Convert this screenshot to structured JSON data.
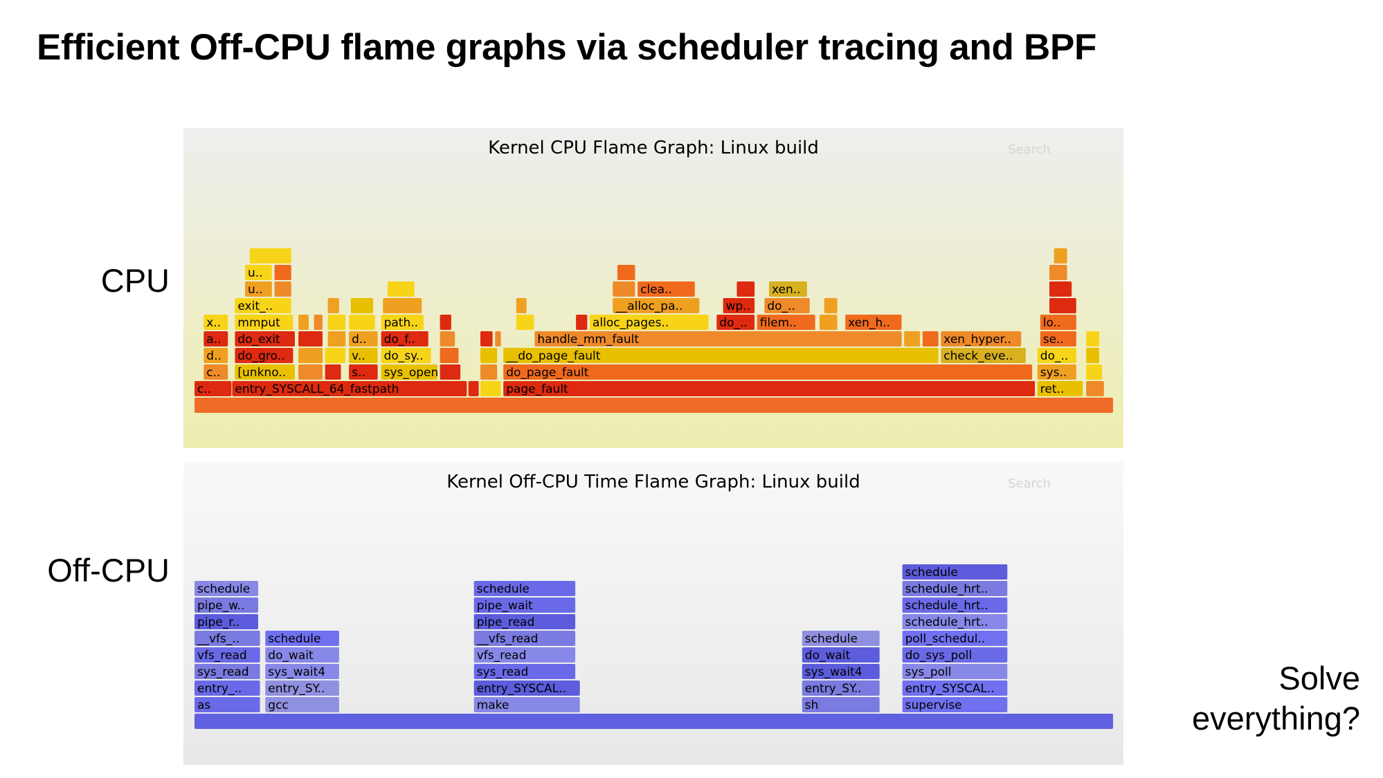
{
  "slide": {
    "title": "Efficient Off-CPU flame graphs via scheduler tracing and BPF",
    "cpu_label": "CPU",
    "offcpu_label": "Off-CPU",
    "solve_line1": "Solve",
    "solve_line2": "everything?"
  },
  "colors": {
    "cpu_palette": [
      "#e84a1a",
      "#f06a1e",
      "#e8c000",
      "#f0a020",
      "#dd2a10",
      "#f8d418",
      "#ee8a2a",
      "#d8b020"
    ],
    "cpu_base": "#f06a28",
    "offcpu_palette": [
      "#6a6ae8",
      "#7a7ae0",
      "#8888e8",
      "#5c5cdc",
      "#9090e0",
      "#7070f0"
    ],
    "offcpu_base": "#6060e0",
    "cpu_bg_top": "#eeeeee",
    "cpu_bg_bottom": "#eeeeb0",
    "offcpu_bg_top": "#f8f8f8",
    "offcpu_bg_bottom": "#e8e8e8"
  },
  "cpu_graph": {
    "title": "Kernel CPU Flame Graph: Linux build",
    "search_label": "Search",
    "frames": [
      {
        "label": "",
        "x0": 0.0,
        "x1": 1.0,
        "depth": 0,
        "c": "base"
      },
      {
        "label": "c..",
        "x0": 0.0,
        "x1": 0.041,
        "depth": 1,
        "c": 4
      },
      {
        "label": "entry_SYSCALL_64_fastpath",
        "x0": 0.041,
        "x1": 0.297,
        "depth": 1,
        "c": 4
      },
      {
        "label": "",
        "x0": 0.298,
        "x1": 0.31,
        "depth": 1,
        "c": 4
      },
      {
        "label": "",
        "x0": 0.311,
        "x1": 0.334,
        "depth": 1,
        "c": 5
      },
      {
        "label": "page_fault",
        "x0": 0.336,
        "x1": 0.915,
        "depth": 1,
        "c": 4
      },
      {
        "label": "ret..",
        "x0": 0.917,
        "x1": 0.967,
        "depth": 1,
        "c": 2
      },
      {
        "label": "",
        "x0": 0.97,
        "x1": 0.99,
        "depth": 1,
        "c": 6
      },
      {
        "label": "c..",
        "x0": 0.01,
        "x1": 0.037,
        "depth": 2,
        "c": 6
      },
      {
        "label": "[unkno..",
        "x0": 0.044,
        "x1": 0.11,
        "depth": 2,
        "c": 2
      },
      {
        "label": "",
        "x0": 0.113,
        "x1": 0.14,
        "depth": 2,
        "c": 6
      },
      {
        "label": "",
        "x0": 0.142,
        "x1": 0.16,
        "depth": 2,
        "c": 4
      },
      {
        "label": "s..",
        "x0": 0.168,
        "x1": 0.2,
        "depth": 2,
        "c": 4
      },
      {
        "label": "sys_open",
        "x0": 0.203,
        "x1": 0.265,
        "depth": 2,
        "c": 2
      },
      {
        "label": "",
        "x0": 0.267,
        "x1": 0.29,
        "depth": 2,
        "c": 4
      },
      {
        "label": "",
        "x0": 0.311,
        "x1": 0.33,
        "depth": 2,
        "c": 6
      },
      {
        "label": "do_page_fault",
        "x0": 0.336,
        "x1": 0.912,
        "depth": 2,
        "c": 1
      },
      {
        "label": "sys..",
        "x0": 0.917,
        "x1": 0.96,
        "depth": 2,
        "c": 3
      },
      {
        "label": "",
        "x0": 0.97,
        "x1": 0.988,
        "depth": 2,
        "c": 5
      },
      {
        "label": "d..",
        "x0": 0.01,
        "x1": 0.037,
        "depth": 3,
        "c": 3
      },
      {
        "label": "do_gro..",
        "x0": 0.044,
        "x1": 0.108,
        "depth": 3,
        "c": 4
      },
      {
        "label": "",
        "x0": 0.113,
        "x1": 0.14,
        "depth": 3,
        "c": 3
      },
      {
        "label": "",
        "x0": 0.142,
        "x1": 0.165,
        "depth": 3,
        "c": 5
      },
      {
        "label": "v..",
        "x0": 0.168,
        "x1": 0.2,
        "depth": 3,
        "c": 2
      },
      {
        "label": "do_sy..",
        "x0": 0.203,
        "x1": 0.258,
        "depth": 3,
        "c": 5
      },
      {
        "label": "",
        "x0": 0.267,
        "x1": 0.288,
        "depth": 3,
        "c": 1
      },
      {
        "label": "",
        "x0": 0.311,
        "x1": 0.33,
        "depth": 3,
        "c": 2
      },
      {
        "label": "__do_page_fault",
        "x0": 0.336,
        "x1": 0.81,
        "depth": 3,
        "c": 2
      },
      {
        "label": "check_eve..",
        "x0": 0.812,
        "x1": 0.905,
        "depth": 3,
        "c": 7
      },
      {
        "label": "do_..",
        "x0": 0.917,
        "x1": 0.96,
        "depth": 3,
        "c": 5
      },
      {
        "label": "",
        "x0": 0.97,
        "x1": 0.985,
        "depth": 3,
        "c": 2
      },
      {
        "label": "a..",
        "x0": 0.01,
        "x1": 0.037,
        "depth": 4,
        "c": 4
      },
      {
        "label": "do_exit",
        "x0": 0.044,
        "x1": 0.11,
        "depth": 4,
        "c": 4
      },
      {
        "label": "",
        "x0": 0.113,
        "x1": 0.14,
        "depth": 4,
        "c": 4
      },
      {
        "label": "",
        "x0": 0.145,
        "x1": 0.165,
        "depth": 4,
        "c": 3
      },
      {
        "label": "d..",
        "x0": 0.168,
        "x1": 0.2,
        "depth": 4,
        "c": 3
      },
      {
        "label": "do_f..",
        "x0": 0.203,
        "x1": 0.255,
        "depth": 4,
        "c": 4
      },
      {
        "label": "",
        "x0": 0.267,
        "x1": 0.284,
        "depth": 4,
        "c": 6
      },
      {
        "label": "",
        "x0": 0.311,
        "x1": 0.325,
        "depth": 4,
        "c": 4
      },
      {
        "label": "",
        "x0": 0.327,
        "x1": 0.334,
        "depth": 4,
        "c": 6
      },
      {
        "label": "handle_mm_fault",
        "x0": 0.37,
        "x1": 0.77,
        "depth": 4,
        "c": 6
      },
      {
        "label": "",
        "x0": 0.772,
        "x1": 0.79,
        "depth": 4,
        "c": 3
      },
      {
        "label": "",
        "x0": 0.792,
        "x1": 0.81,
        "depth": 4,
        "c": 1
      },
      {
        "label": "xen_hyper..",
        "x0": 0.812,
        "x1": 0.9,
        "depth": 4,
        "c": 6
      },
      {
        "label": "se..",
        "x0": 0.92,
        "x1": 0.96,
        "depth": 4,
        "c": 1
      },
      {
        "label": "",
        "x0": 0.97,
        "x1": 0.985,
        "depth": 4,
        "c": 5
      },
      {
        "label": "x..",
        "x0": 0.01,
        "x1": 0.037,
        "depth": 5,
        "c": 5
      },
      {
        "label": "mmput",
        "x0": 0.044,
        "x1": 0.108,
        "depth": 5,
        "c": 5
      },
      {
        "label": "",
        "x0": 0.113,
        "x1": 0.125,
        "depth": 5,
        "c": 3
      },
      {
        "label": "",
        "x0": 0.13,
        "x1": 0.14,
        "depth": 5,
        "c": 6
      },
      {
        "label": "",
        "x0": 0.145,
        "x1": 0.165,
        "depth": 5,
        "c": 5
      },
      {
        "label": "",
        "x0": 0.168,
        "x1": 0.197,
        "depth": 5,
        "c": 5
      },
      {
        "label": "path..",
        "x0": 0.203,
        "x1": 0.25,
        "depth": 5,
        "c": 5
      },
      {
        "label": "",
        "x0": 0.267,
        "x1": 0.28,
        "depth": 5,
        "c": 4
      },
      {
        "label": "",
        "x0": 0.35,
        "x1": 0.37,
        "depth": 5,
        "c": 5
      },
      {
        "label": "",
        "x0": 0.415,
        "x1": 0.428,
        "depth": 5,
        "c": 4
      },
      {
        "label": "alloc_pages..",
        "x0": 0.43,
        "x1": 0.56,
        "depth": 5,
        "c": 5
      },
      {
        "label": "do_..",
        "x0": 0.568,
        "x1": 0.61,
        "depth": 5,
        "c": 4
      },
      {
        "label": "filem..",
        "x0": 0.612,
        "x1": 0.676,
        "depth": 5,
        "c": 1
      },
      {
        "label": "",
        "x0": 0.68,
        "x1": 0.7,
        "depth": 5,
        "c": 3
      },
      {
        "label": "xen_h..",
        "x0": 0.708,
        "x1": 0.77,
        "depth": 5,
        "c": 1
      },
      {
        "label": "lo..",
        "x0": 0.92,
        "x1": 0.96,
        "depth": 5,
        "c": 1
      },
      {
        "label": "exit_..",
        "x0": 0.044,
        "x1": 0.106,
        "depth": 6,
        "c": 5
      },
      {
        "label": "",
        "x0": 0.145,
        "x1": 0.158,
        "depth": 6,
        "c": 3
      },
      {
        "label": "",
        "x0": 0.17,
        "x1": 0.195,
        "depth": 6,
        "c": 2
      },
      {
        "label": "",
        "x0": 0.205,
        "x1": 0.248,
        "depth": 6,
        "c": 3
      },
      {
        "label": "",
        "x0": 0.35,
        "x1": 0.362,
        "depth": 6,
        "c": 3
      },
      {
        "label": "__alloc_pa..",
        "x0": 0.455,
        "x1": 0.55,
        "depth": 6,
        "c": 3
      },
      {
        "label": "wp..",
        "x0": 0.575,
        "x1": 0.61,
        "depth": 6,
        "c": 4
      },
      {
        "label": "do_..",
        "x0": 0.62,
        "x1": 0.67,
        "depth": 6,
        "c": 6
      },
      {
        "label": "",
        "x0": 0.685,
        "x1": 0.7,
        "depth": 6,
        "c": 3
      },
      {
        "label": "",
        "x0": 0.93,
        "x1": 0.96,
        "depth": 6,
        "c": 4
      },
      {
        "label": "u..",
        "x0": 0.055,
        "x1": 0.085,
        "depth": 7,
        "c": 3
      },
      {
        "label": "",
        "x0": 0.087,
        "x1": 0.106,
        "depth": 7,
        "c": 6
      },
      {
        "label": "",
        "x0": 0.21,
        "x1": 0.24,
        "depth": 7,
        "c": 5
      },
      {
        "label": "",
        "x0": 0.455,
        "x1": 0.48,
        "depth": 7,
        "c": 6
      },
      {
        "label": "clea..",
        "x0": 0.482,
        "x1": 0.545,
        "depth": 7,
        "c": 1
      },
      {
        "label": "",
        "x0": 0.59,
        "x1": 0.61,
        "depth": 7,
        "c": 4
      },
      {
        "label": "xen..",
        "x0": 0.625,
        "x1": 0.667,
        "depth": 7,
        "c": 7
      },
      {
        "label": "",
        "x0": 0.93,
        "x1": 0.955,
        "depth": 7,
        "c": 4
      },
      {
        "label": "u..",
        "x0": 0.055,
        "x1": 0.085,
        "depth": 8,
        "c": 5
      },
      {
        "label": "",
        "x0": 0.087,
        "x1": 0.106,
        "depth": 8,
        "c": 1
      },
      {
        "label": "",
        "x0": 0.46,
        "x1": 0.48,
        "depth": 8,
        "c": 1
      },
      {
        "label": "",
        "x0": 0.93,
        "x1": 0.95,
        "depth": 8,
        "c": 6
      },
      {
        "label": "",
        "x0": 0.06,
        "x1": 0.106,
        "depth": 9,
        "c": 5
      },
      {
        "label": "",
        "x0": 0.935,
        "x1": 0.95,
        "depth": 9,
        "c": 3
      }
    ]
  },
  "offcpu_graph": {
    "title": "Kernel Off-CPU Time Flame Graph: Linux build",
    "search_label": "Search",
    "frames": [
      {
        "label": "",
        "x0": 0.0,
        "x1": 1.0,
        "depth": 0,
        "c": "base"
      },
      {
        "label": "as",
        "x0": 0.0,
        "x1": 0.072,
        "depth": 1,
        "c": 0
      },
      {
        "label": "gcc",
        "x0": 0.077,
        "x1": 0.158,
        "depth": 1,
        "c": 4
      },
      {
        "label": "make",
        "x0": 0.304,
        "x1": 0.42,
        "depth": 1,
        "c": 2
      },
      {
        "label": "sh",
        "x0": 0.661,
        "x1": 0.746,
        "depth": 1,
        "c": 1
      },
      {
        "label": "supervise",
        "x0": 0.77,
        "x1": 0.885,
        "depth": 1,
        "c": 5
      },
      {
        "label": "entry_..",
        "x0": 0.0,
        "x1": 0.072,
        "depth": 2,
        "c": 0
      },
      {
        "label": "entry_SY..",
        "x0": 0.077,
        "x1": 0.158,
        "depth": 2,
        "c": 4
      },
      {
        "label": "entry_SYSCAL..",
        "x0": 0.304,
        "x1": 0.42,
        "depth": 2,
        "c": 3
      },
      {
        "label": "entry_SY..",
        "x0": 0.661,
        "x1": 0.746,
        "depth": 2,
        "c": 1
      },
      {
        "label": "entry_SYSCAL..",
        "x0": 0.77,
        "x1": 0.885,
        "depth": 2,
        "c": 5
      },
      {
        "label": "sys_read",
        "x0": 0.0,
        "x1": 0.072,
        "depth": 3,
        "c": 1
      },
      {
        "label": "sys_wait4",
        "x0": 0.077,
        "x1": 0.158,
        "depth": 3,
        "c": 2
      },
      {
        "label": "sys_read",
        "x0": 0.304,
        "x1": 0.415,
        "depth": 3,
        "c": 0
      },
      {
        "label": "sys_wait4",
        "x0": 0.661,
        "x1": 0.746,
        "depth": 3,
        "c": 3
      },
      {
        "label": "sys_poll",
        "x0": 0.77,
        "x1": 0.885,
        "depth": 3,
        "c": 2
      },
      {
        "label": "vfs_read",
        "x0": 0.0,
        "x1": 0.072,
        "depth": 4,
        "c": 0
      },
      {
        "label": "do_wait",
        "x0": 0.077,
        "x1": 0.158,
        "depth": 4,
        "c": 2
      },
      {
        "label": "vfs_read",
        "x0": 0.304,
        "x1": 0.415,
        "depth": 4,
        "c": 2
      },
      {
        "label": "do_wait",
        "x0": 0.661,
        "x1": 0.746,
        "depth": 4,
        "c": 3
      },
      {
        "label": "do_sys_poll",
        "x0": 0.77,
        "x1": 0.885,
        "depth": 4,
        "c": 0
      },
      {
        "label": "__vfs_..",
        "x0": 0.0,
        "x1": 0.072,
        "depth": 5,
        "c": 1
      },
      {
        "label": "schedule",
        "x0": 0.077,
        "x1": 0.158,
        "depth": 5,
        "c": 5
      },
      {
        "label": "__vfs_read",
        "x0": 0.304,
        "x1": 0.415,
        "depth": 5,
        "c": 1
      },
      {
        "label": "schedule",
        "x0": 0.661,
        "x1": 0.746,
        "depth": 5,
        "c": 4
      },
      {
        "label": "poll_schedul..",
        "x0": 0.77,
        "x1": 0.885,
        "depth": 5,
        "c": 5
      },
      {
        "label": "pipe_r..",
        "x0": 0.0,
        "x1": 0.07,
        "depth": 6,
        "c": 3
      },
      {
        "label": "pipe_read",
        "x0": 0.304,
        "x1": 0.415,
        "depth": 6,
        "c": 3
      },
      {
        "label": "schedule_hrt..",
        "x0": 0.77,
        "x1": 0.885,
        "depth": 6,
        "c": 2
      },
      {
        "label": "pipe_w..",
        "x0": 0.0,
        "x1": 0.07,
        "depth": 7,
        "c": 1
      },
      {
        "label": "pipe_wait",
        "x0": 0.304,
        "x1": 0.415,
        "depth": 7,
        "c": 0
      },
      {
        "label": "schedule_hrt..",
        "x0": 0.77,
        "x1": 0.885,
        "depth": 7,
        "c": 0
      },
      {
        "label": "schedule",
        "x0": 0.0,
        "x1": 0.07,
        "depth": 8,
        "c": 2
      },
      {
        "label": "schedule",
        "x0": 0.304,
        "x1": 0.415,
        "depth": 8,
        "c": 0
      },
      {
        "label": "schedule_hrt..",
        "x0": 0.77,
        "x1": 0.885,
        "depth": 8,
        "c": 1
      },
      {
        "label": "schedule",
        "x0": 0.77,
        "x1": 0.885,
        "depth": 9,
        "c": 3
      }
    ]
  }
}
